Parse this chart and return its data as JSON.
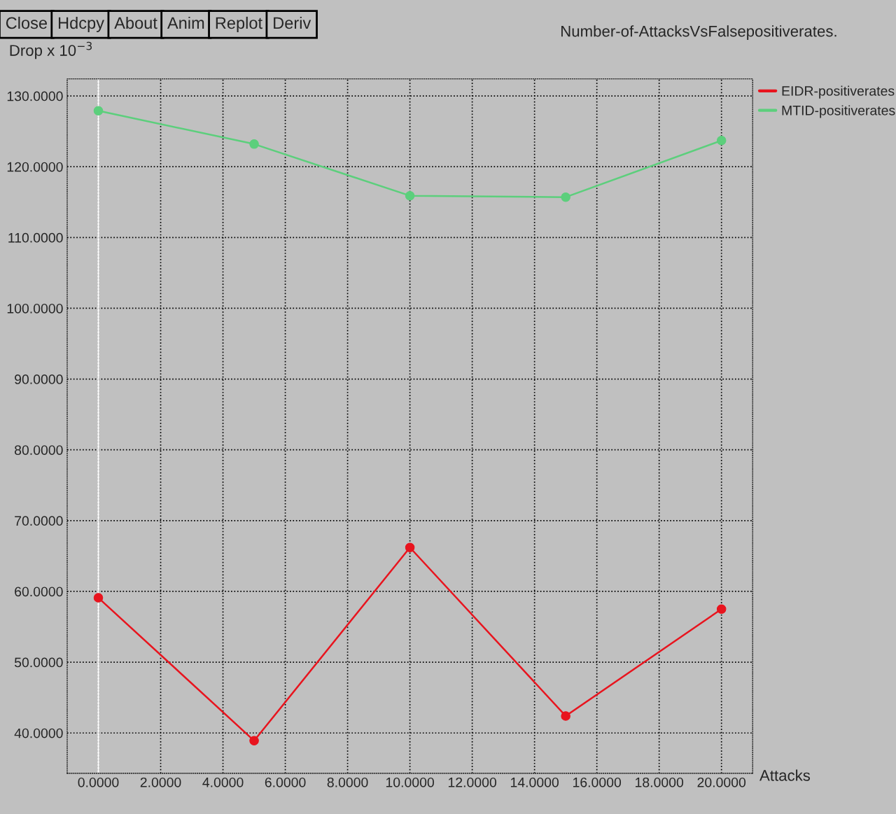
{
  "chart_data": {
    "type": "line",
    "title": "Number-of-AttacksVsFalsepositiverates.",
    "xlabel": "Attacks",
    "ylabel": "Drop x 10$^{−3}$",
    "annotations": [
      "Close",
      "Hdcpy",
      "About",
      "Anim",
      "Replot",
      "Deriv"
    ],
    "x": [
      0,
      5,
      10,
      15,
      20
    ],
    "series": [
      {
        "name": "EIDR-positiverates",
        "color": "#e8141e",
        "values": [
          59.1,
          38.9,
          66.2,
          42.4,
          57.5
        ]
      },
      {
        "name": "MTID-positiverates",
        "color": "#5ccf7c",
        "values": [
          127.9,
          123.2,
          115.9,
          115.7,
          123.7
        ]
      }
    ],
    "xlim": [
      -1,
      21
    ],
    "ylim": [
      34.3,
      132.4
    ],
    "xticks": [
      {
        "value": 0,
        "label": "0.0000"
      },
      {
        "value": 2,
        "label": "2.0000"
      },
      {
        "value": 4,
        "label": "4.0000"
      },
      {
        "value": 6,
        "label": "6.0000"
      },
      {
        "value": 8,
        "label": "8.0000"
      },
      {
        "value": 10,
        "label": "10.0000"
      },
      {
        "value": 12,
        "label": "12.0000"
      },
      {
        "value": 14,
        "label": "14.0000"
      },
      {
        "value": 16,
        "label": "16.0000"
      },
      {
        "value": 18,
        "label": "18.0000"
      },
      {
        "value": 20,
        "label": "20.0000"
      }
    ],
    "yticks": [
      {
        "value": 40,
        "label": "40.0000"
      },
      {
        "value": 50,
        "label": "50.0000"
      },
      {
        "value": 60,
        "label": "60.0000"
      },
      {
        "value": 70,
        "label": "70.0000"
      },
      {
        "value": 80,
        "label": "80.0000"
      },
      {
        "value": 90,
        "label": "90.0000"
      },
      {
        "value": 100,
        "label": "100.0000"
      },
      {
        "value": 110,
        "label": "110.0000"
      },
      {
        "value": 120,
        "label": "120.0000"
      },
      {
        "value": 130,
        "label": "130.0000"
      }
    ],
    "ref_lines": [
      {
        "axis": "x",
        "value": 0,
        "color": "#ffffff"
      }
    ],
    "grid": true,
    "legend": "top right",
    "marker": "circle",
    "line_style": "solid"
  }
}
